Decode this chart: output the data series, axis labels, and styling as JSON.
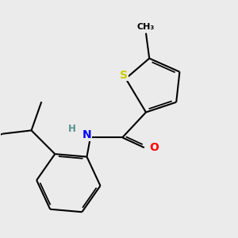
{
  "background_color": "#ebebeb",
  "atom_colors": {
    "C": "#000000",
    "H": "#5a9090",
    "N": "#0000ff",
    "O": "#ff0000",
    "S": "#cccc00"
  },
  "bond_color": "#000000",
  "bond_lw": 1.5,
  "figsize": [
    3.0,
    3.0
  ],
  "dpi": 100
}
